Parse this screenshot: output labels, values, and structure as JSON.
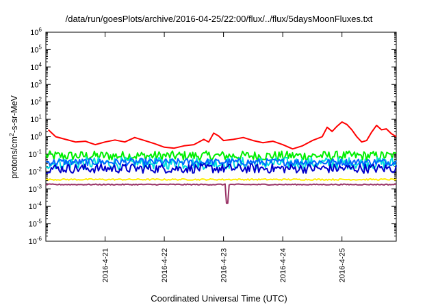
{
  "chart_data": {
    "type": "line",
    "title": "/data/run/goesPlots/archive/2016-04-25/22:00/flux/../flux/5daysMoonFluxes.txt",
    "xlabel": "Coordinated Universal Time (UTC)",
    "ylabel_parts": [
      "protons/cm",
      "2",
      "-s-sr-MeV"
    ],
    "yscale": "log",
    "ylim": [
      1e-06,
      1000000.0
    ],
    "xlim": [
      "2016-04-20 01:00",
      "2016-04-25 23:00"
    ],
    "y_ticks": [
      {
        "base": "10",
        "exp": "-6"
      },
      {
        "base": "10",
        "exp": "-5"
      },
      {
        "base": "10",
        "exp": "-4"
      },
      {
        "base": "10",
        "exp": "-3"
      },
      {
        "base": "10",
        "exp": "-2"
      },
      {
        "base": "10",
        "exp": "-1"
      },
      {
        "base": "10",
        "exp": "0"
      },
      {
        "base": "10",
        "exp": "1"
      },
      {
        "base": "10",
        "exp": "2"
      },
      {
        "base": "10",
        "exp": "3"
      },
      {
        "base": "10",
        "exp": "4"
      },
      {
        "base": "10",
        "exp": "5"
      },
      {
        "base": "10",
        "exp": "6"
      }
    ],
    "x_ticks": [
      "2016-4-21",
      "2016-4-22",
      "2016-4-23",
      "2016-4-24",
      "2016-4-25"
    ],
    "x_tick_hours": [
      24,
      48,
      72,
      96,
      120
    ],
    "hours_span": 142,
    "grid": false,
    "legend": "none",
    "series": [
      {
        "color": "#ff0000",
        "values": [
          [
            1,
            2.5
          ],
          [
            4,
            1.0
          ],
          [
            8,
            0.7
          ],
          [
            12,
            0.5
          ],
          [
            16,
            0.55
          ],
          [
            20,
            0.35
          ],
          [
            24,
            0.5
          ],
          [
            28,
            0.65
          ],
          [
            32,
            0.5
          ],
          [
            36,
            0.9
          ],
          [
            40,
            0.6
          ],
          [
            44,
            0.4
          ],
          [
            48,
            0.25
          ],
          [
            52,
            0.22
          ],
          [
            56,
            0.3
          ],
          [
            60,
            0.35
          ],
          [
            64,
            0.7
          ],
          [
            66,
            0.5
          ],
          [
            68,
            1.6
          ],
          [
            70,
            1.1
          ],
          [
            72,
            0.6
          ],
          [
            76,
            0.7
          ],
          [
            80,
            0.9
          ],
          [
            84,
            0.6
          ],
          [
            88,
            0.45
          ],
          [
            92,
            0.55
          ],
          [
            96,
            0.35
          ],
          [
            100,
            0.2
          ],
          [
            104,
            0.3
          ],
          [
            108,
            0.6
          ],
          [
            112,
            1.0
          ],
          [
            114,
            3.5
          ],
          [
            116,
            2.0
          ],
          [
            118,
            4.0
          ],
          [
            120,
            7.0
          ],
          [
            122,
            5.0
          ],
          [
            124,
            2.5
          ],
          [
            126,
            1.0
          ],
          [
            128,
            0.5
          ],
          [
            130,
            0.6
          ],
          [
            132,
            1.8
          ],
          [
            134,
            4.5
          ],
          [
            136,
            2.5
          ],
          [
            138,
            2.8
          ],
          [
            140,
            1.5
          ],
          [
            142,
            1.0
          ]
        ]
      },
      {
        "color": "#00ee00",
        "base": 0.08,
        "amp": 0.55
      },
      {
        "color": "#00dddd",
        "base": 0.03,
        "amp": 0.7
      },
      {
        "color": "#0066ff",
        "base": 0.035,
        "amp": 0.4
      },
      {
        "color": "#0000cc",
        "base": 0.015,
        "amp": 0.55
      },
      {
        "color": "#ffee00",
        "base": 0.0035,
        "amp": 0.08
      },
      {
        "color": "#993366",
        "base": 0.0018,
        "amp": 0.06,
        "dip": {
          "x": 73.5,
          "y": 0.00015
        }
      }
    ]
  }
}
